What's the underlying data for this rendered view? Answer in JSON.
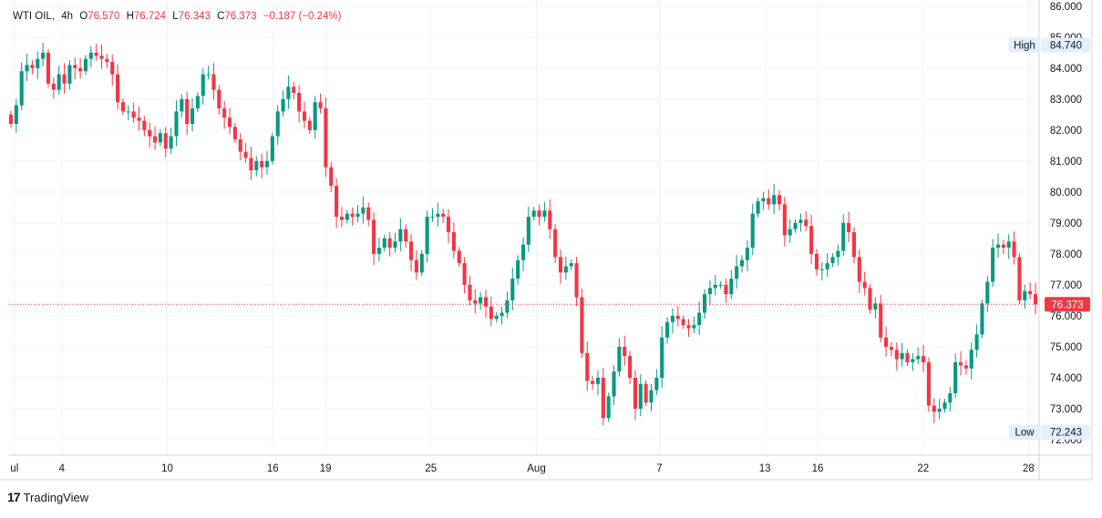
{
  "legend": {
    "symbol": "WTI OIL",
    "interval": "4h",
    "open_label": "O",
    "open": "76.570",
    "high_label": "H",
    "high": "76.724",
    "low_label": "L",
    "low": "76.343",
    "close_label": "C",
    "close": "76.373",
    "change": "−0.187 (−0.24%)"
  },
  "footer": {
    "brand": "TradingView"
  },
  "colors": {
    "up": "#089981",
    "down": "#f23645",
    "grid": "#f0f3fa",
    "axis_text": "#131722"
  },
  "chart_data": {
    "type": "candlestick",
    "y_ticks": [
      "86.000",
      "85.000",
      "84.000",
      "83.000",
      "82.000",
      "81.000",
      "80.000",
      "79.000",
      "78.000",
      "77.000",
      "76.000",
      "75.000",
      "74.000",
      "73.000",
      "72.000"
    ],
    "ylim": [
      71.5,
      86.2
    ],
    "x_ticks": [
      {
        "label": "ul",
        "day": 0.3
      },
      {
        "label": "4",
        "day": 3
      },
      {
        "label": "10",
        "day": 9
      },
      {
        "label": "16",
        "day": 15
      },
      {
        "label": "19",
        "day": 18
      },
      {
        "label": "25",
        "day": 24
      },
      {
        "label": "Aug",
        "day": 30
      },
      {
        "label": "7",
        "day": 37
      },
      {
        "label": "13",
        "day": 43
      },
      {
        "label": "16",
        "day": 46
      },
      {
        "label": "22",
        "day": 52
      },
      {
        "label": "28",
        "day": 58
      }
    ],
    "badges": [
      {
        "label": "High",
        "value": "84.740",
        "price": 84.74
      },
      {
        "label": "Low",
        "value": "72.243",
        "price": 72.243
      }
    ],
    "last_price": {
      "value": "76.373",
      "price": 76.373
    },
    "closes": [
      82.2,
      82.8,
      83.9,
      84.1,
      84.0,
      84.3,
      84.5,
      83.5,
      83.3,
      83.8,
      83.5,
      84.1,
      84.0,
      83.9,
      84.3,
      84.5,
      84.4,
      84.3,
      84.2,
      83.8,
      82.9,
      82.6,
      82.6,
      82.4,
      82.3,
      82.0,
      81.8,
      81.6,
      81.9,
      81.4,
      81.8,
      82.6,
      83.0,
      82.2,
      82.7,
      83.1,
      83.8,
      83.8,
      83.3,
      82.7,
      82.4,
      82.1,
      81.7,
      81.3,
      81.1,
      80.7,
      81.0,
      80.8,
      81.0,
      81.8,
      82.6,
      83.0,
      83.4,
      83.2,
      82.6,
      82.3,
      82.0,
      82.9,
      82.7,
      80.8,
      80.2,
      79.2,
      79.1,
      79.3,
      79.2,
      79.3,
      79.5,
      79.1,
      78.0,
      78.2,
      78.5,
      78.2,
      78.4,
      78.8,
      78.4,
      77.8,
      77.4,
      78.0,
      79.2,
      79.2,
      79.3,
      79.2,
      78.7,
      78.1,
      77.7,
      77.0,
      76.5,
      76.4,
      76.6,
      76.3,
      75.9,
      76.0,
      76.1,
      76.5,
      77.2,
      77.8,
      78.3,
      79.2,
      79.4,
      79.2,
      79.4,
      78.8,
      77.9,
      77.4,
      77.6,
      77.7,
      76.6,
      74.8,
      73.9,
      73.8,
      74.0,
      72.7,
      73.4,
      74.2,
      75.0,
      74.7,
      74.0,
      73.0,
      73.8,
      73.2,
      73.6,
      74.0,
      75.3,
      75.8,
      76.0,
      75.9,
      75.7,
      75.6,
      75.7,
      76.1,
      76.7,
      76.9,
      77.0,
      77.0,
      76.7,
      77.2,
      77.6,
      77.8,
      78.2,
      79.3,
      79.7,
      79.8,
      79.6,
      79.9,
      79.6,
      78.6,
      78.8,
      79.0,
      79.1,
      78.9,
      78.0,
      77.5,
      77.5,
      77.7,
      77.9,
      78.1,
      79.0,
      78.7,
      77.9,
      77.1,
      76.9,
      76.2,
      76.4,
      75.3,
      75.0,
      74.9,
      74.6,
      74.8,
      74.5,
      74.6,
      74.7,
      74.5,
      73.1,
      72.9,
      73.0,
      73.2,
      73.5,
      74.5,
      74.4,
      74.3,
      74.9,
      75.4,
      76.4,
      77.1,
      78.2,
      78.3,
      78.2,
      78.4,
      77.9,
      76.5,
      76.8,
      76.7,
      76.373
    ]
  }
}
